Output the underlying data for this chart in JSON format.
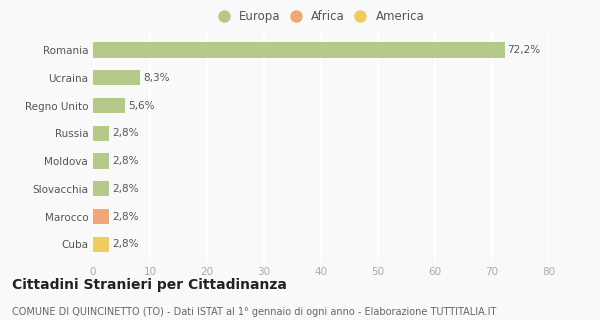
{
  "categories": [
    "Romania",
    "Ucraina",
    "Regno Unito",
    "Russia",
    "Moldova",
    "Slovacchia",
    "Marocco",
    "Cuba"
  ],
  "values": [
    72.2,
    8.3,
    5.6,
    2.8,
    2.8,
    2.8,
    2.8,
    2.8
  ],
  "bar_colors": [
    "#b5c98a",
    "#b5c98a",
    "#b5c98a",
    "#b5c98a",
    "#b5c98a",
    "#b5c98a",
    "#f0a878",
    "#f0cc5a"
  ],
  "labels": [
    "72,2%",
    "8,3%",
    "5,6%",
    "2,8%",
    "2,8%",
    "2,8%",
    "2,8%",
    "2,8%"
  ],
  "xlim": [
    0,
    80
  ],
  "xticks": [
    0,
    10,
    20,
    30,
    40,
    50,
    60,
    70,
    80
  ],
  "title": "Cittadini Stranieri per Cittadinanza",
  "subtitle": "COMUNE DI QUINCINETTO (TO) - Dati ISTAT al 1° gennaio di ogni anno - Elaborazione TUTTITALIA.IT",
  "legend": [
    {
      "label": "Europa",
      "color": "#b5c98a"
    },
    {
      "label": "Africa",
      "color": "#f0a878"
    },
    {
      "label": "America",
      "color": "#f0cc5a"
    }
  ],
  "background_color": "#f9f9f9",
  "grid_color": "#ffffff",
  "bar_height": 0.55,
  "label_fontsize": 7.5,
  "title_fontsize": 10,
  "subtitle_fontsize": 7,
  "tick_fontsize": 7.5,
  "legend_fontsize": 8.5
}
